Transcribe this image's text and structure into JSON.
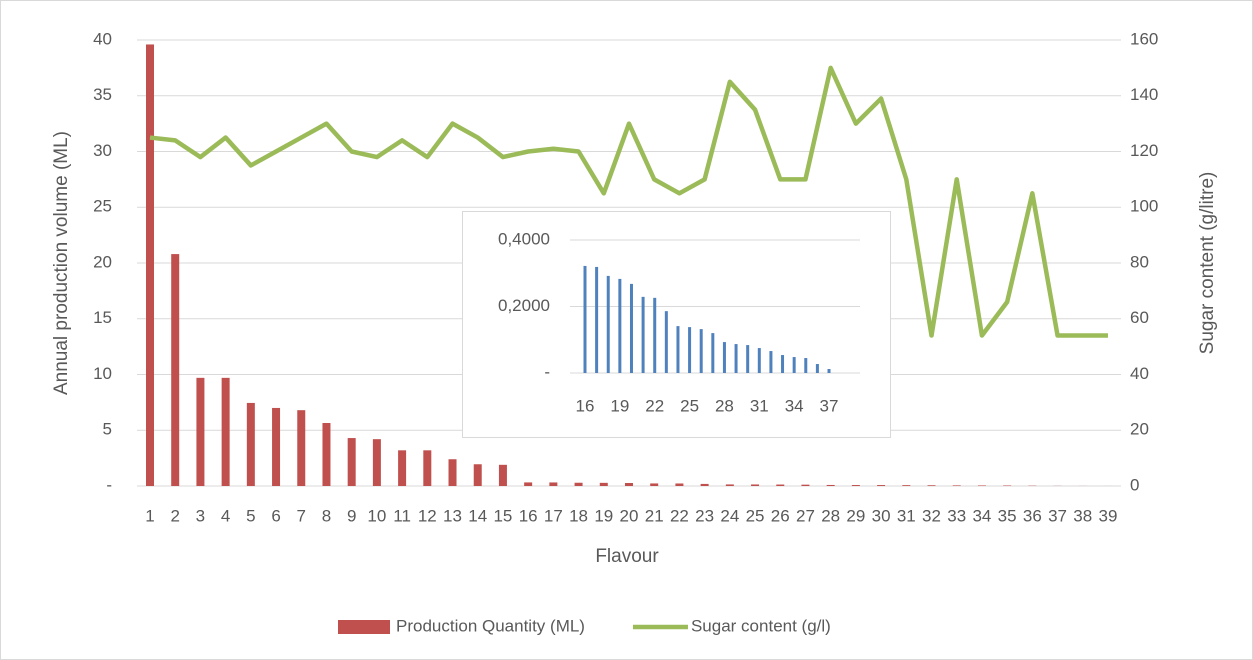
{
  "chart_data": [
    {
      "type": "combo",
      "x_label": "Flavour",
      "y_label": "Annual production volume (ML)",
      "y2_label": "Sugar content (g/litre)",
      "categories": [
        "1",
        "2",
        "3",
        "4",
        "5",
        "6",
        "7",
        "8",
        "9",
        "10",
        "11",
        "12",
        "13",
        "14",
        "15",
        "16",
        "17",
        "18",
        "19",
        "20",
        "21",
        "22",
        "23",
        "24",
        "25",
        "26",
        "27",
        "28",
        "29",
        "30",
        "31",
        "32",
        "33",
        "34",
        "35",
        "36",
        "37",
        "38",
        "39"
      ],
      "series": [
        {
          "name": "Production Quantity (ML)",
          "type": "bar",
          "color": "#c0504d",
          "values": [
            39.6,
            20.8,
            9.7,
            9.7,
            7.45,
            7.0,
            6.8,
            5.65,
            4.3,
            4.2,
            3.2,
            3.2,
            2.4,
            1.95,
            1.9,
            0.322,
            0.319,
            0.292,
            0.283,
            0.268,
            0.229,
            0.226,
            0.186,
            0.141,
            0.138,
            0.132,
            0.12,
            0.093,
            0.087,
            0.084,
            0.075,
            0.066,
            0.054,
            0.048,
            0.045,
            0.027,
            0.012,
            0.005,
            0.003
          ]
        },
        {
          "name": "Sugar content (g/l)",
          "type": "line",
          "axis": "y2",
          "color": "#9bbb59",
          "values": [
            125,
            124,
            118,
            125,
            115,
            120,
            125,
            130,
            120,
            118,
            124,
            118,
            130,
            125,
            118,
            120,
            121,
            120,
            105,
            130,
            110,
            105,
            110,
            145,
            135,
            110,
            110,
            150,
            130,
            139,
            110,
            54,
            110,
            54,
            66,
            105,
            54,
            54,
            54
          ]
        }
      ],
      "ylim": [
        0,
        40
      ],
      "yticks": [
        {
          "value": 0,
          "label": "-"
        },
        5,
        10,
        15,
        20,
        25,
        30,
        35,
        40
      ],
      "y2lim": [
        0,
        160
      ],
      "y2ticks": [
        0,
        20,
        40,
        60,
        80,
        100,
        120,
        140,
        160
      ],
      "grid": true,
      "legend": "bottom"
    },
    {
      "type": "bar",
      "categories": [
        "16",
        null,
        null,
        "19",
        null,
        null,
        "22",
        null,
        null,
        "25",
        null,
        null,
        "28",
        null,
        null,
        "31",
        null,
        null,
        "34",
        null,
        null,
        "37"
      ],
      "values": [
        0.322,
        0.319,
        0.292,
        0.283,
        0.268,
        0.229,
        0.226,
        0.186,
        0.141,
        0.138,
        0.132,
        0.12,
        0.093,
        0.087,
        0.084,
        0.075,
        0.066,
        0.054,
        0.048,
        0.045,
        0.027,
        0.012
      ],
      "color": "#4f81bd",
      "ylim": [
        0,
        0.4
      ],
      "yticks": [
        {
          "value": 0,
          "label": "-"
        },
        {
          "value": 0.2,
          "label": "0,2000"
        },
        {
          "value": 0.4,
          "label": "0,4000"
        }
      ],
      "grid": true
    }
  ]
}
